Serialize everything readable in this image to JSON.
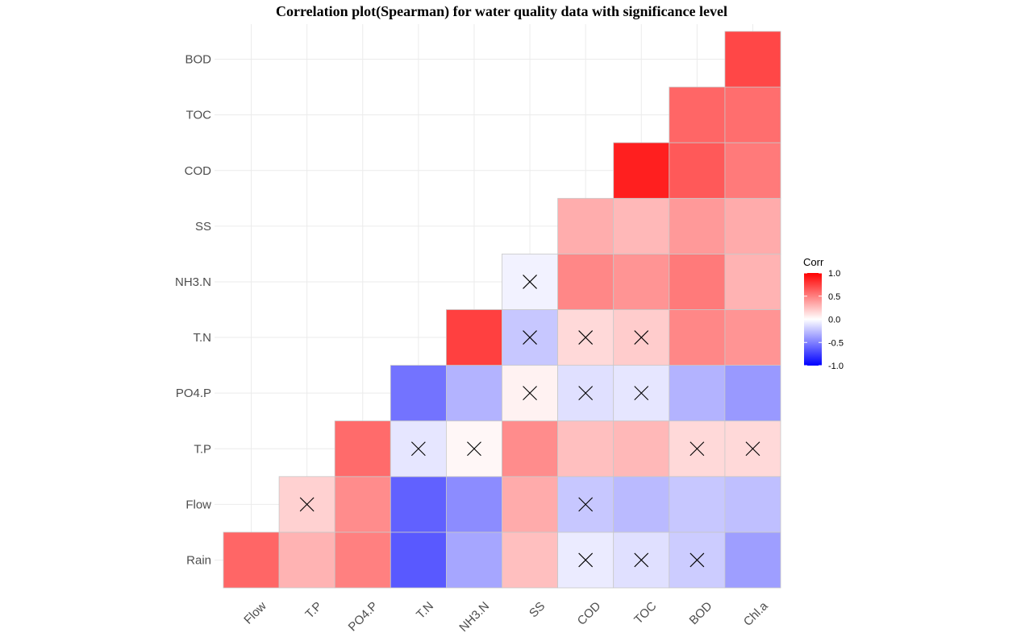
{
  "title": "Correlation plot(Spearman) for water quality data with significance level",
  "chart_data": {
    "type": "heatmap",
    "title": "Correlation plot(Spearman) for water quality data with significance level",
    "method": "Spearman",
    "x_labels": [
      "Flow",
      "T.P",
      "PO4.P",
      "T.N",
      "NH3.N",
      "SS",
      "COD",
      "TOC",
      "BOD",
      "Chl.a"
    ],
    "y_labels": [
      "Rain",
      "Flow",
      "T.P",
      "PO4.P",
      "T.N",
      "NH3.N",
      "SS",
      "COD",
      "TOC",
      "BOD"
    ],
    "cells": [
      {
        "x": "Flow",
        "y": "Rain",
        "r": 0.6,
        "insignificant": false
      },
      {
        "x": "T.P",
        "y": "Rain",
        "r": 0.3,
        "insignificant": false
      },
      {
        "x": "PO4.P",
        "y": "Rain",
        "r": 0.5,
        "insignificant": false
      },
      {
        "x": "T.N",
        "y": "Rain",
        "r": -0.65,
        "insignificant": false
      },
      {
        "x": "NH3.N",
        "y": "Rain",
        "r": -0.35,
        "insignificant": false
      },
      {
        "x": "SS",
        "y": "Rain",
        "r": 0.25,
        "insignificant": false
      },
      {
        "x": "COD",
        "y": "Rain",
        "r": -0.08,
        "insignificant": true
      },
      {
        "x": "TOC",
        "y": "Rain",
        "r": -0.12,
        "insignificant": true
      },
      {
        "x": "BOD",
        "y": "Rain",
        "r": -0.2,
        "insignificant": true
      },
      {
        "x": "Chl.a",
        "y": "Rain",
        "r": -0.38,
        "insignificant": false
      },
      {
        "x": "T.P",
        "y": "Flow",
        "r": 0.18,
        "insignificant": true
      },
      {
        "x": "PO4.P",
        "y": "Flow",
        "r": 0.45,
        "insignificant": false
      },
      {
        "x": "T.N",
        "y": "Flow",
        "r": -0.62,
        "insignificant": false
      },
      {
        "x": "NH3.N",
        "y": "Flow",
        "r": -0.45,
        "insignificant": false
      },
      {
        "x": "SS",
        "y": "Flow",
        "r": 0.33,
        "insignificant": false
      },
      {
        "x": "COD",
        "y": "Flow",
        "r": -0.22,
        "insignificant": true
      },
      {
        "x": "TOC",
        "y": "Flow",
        "r": -0.27,
        "insignificant": false
      },
      {
        "x": "BOD",
        "y": "Flow",
        "r": -0.22,
        "insignificant": false
      },
      {
        "x": "Chl.a",
        "y": "Flow",
        "r": -0.25,
        "insignificant": false
      },
      {
        "x": "PO4.P",
        "y": "T.P",
        "r": 0.58,
        "insignificant": false
      },
      {
        "x": "T.N",
        "y": "T.P",
        "r": -0.1,
        "insignificant": true
      },
      {
        "x": "NH3.N",
        "y": "T.P",
        "r": 0.03,
        "insignificant": true
      },
      {
        "x": "SS",
        "y": "T.P",
        "r": 0.45,
        "insignificant": false
      },
      {
        "x": "COD",
        "y": "T.P",
        "r": 0.25,
        "insignificant": false
      },
      {
        "x": "TOC",
        "y": "T.P",
        "r": 0.28,
        "insignificant": false
      },
      {
        "x": "BOD",
        "y": "T.P",
        "r": 0.15,
        "insignificant": true
      },
      {
        "x": "Chl.a",
        "y": "T.P",
        "r": 0.15,
        "insignificant": true
      },
      {
        "x": "T.N",
        "y": "PO4.P",
        "r": -0.55,
        "insignificant": false
      },
      {
        "x": "NH3.N",
        "y": "PO4.P",
        "r": -0.3,
        "insignificant": false
      },
      {
        "x": "SS",
        "y": "PO4.P",
        "r": 0.05,
        "insignificant": true
      },
      {
        "x": "COD",
        "y": "PO4.P",
        "r": -0.12,
        "insignificant": true
      },
      {
        "x": "TOC",
        "y": "PO4.P",
        "r": -0.1,
        "insignificant": true
      },
      {
        "x": "BOD",
        "y": "PO4.P",
        "r": -0.3,
        "insignificant": false
      },
      {
        "x": "Chl.a",
        "y": "PO4.P",
        "r": -0.4,
        "insignificant": false
      },
      {
        "x": "NH3.N",
        "y": "T.N",
        "r": 0.75,
        "insignificant": false
      },
      {
        "x": "SS",
        "y": "T.N",
        "r": -0.22,
        "insignificant": true
      },
      {
        "x": "COD",
        "y": "T.N",
        "r": 0.15,
        "insignificant": true
      },
      {
        "x": "TOC",
        "y": "T.N",
        "r": 0.2,
        "insignificant": true
      },
      {
        "x": "BOD",
        "y": "T.N",
        "r": 0.47,
        "insignificant": false
      },
      {
        "x": "Chl.a",
        "y": "T.N",
        "r": 0.42,
        "insignificant": false
      },
      {
        "x": "SS",
        "y": "NH3.N",
        "r": -0.05,
        "insignificant": true
      },
      {
        "x": "COD",
        "y": "NH3.N",
        "r": 0.47,
        "insignificant": false
      },
      {
        "x": "TOC",
        "y": "NH3.N",
        "r": 0.42,
        "insignificant": false
      },
      {
        "x": "BOD",
        "y": "NH3.N",
        "r": 0.52,
        "insignificant": false
      },
      {
        "x": "Chl.a",
        "y": "NH3.N",
        "r": 0.3,
        "insignificant": false
      },
      {
        "x": "COD",
        "y": "SS",
        "r": 0.32,
        "insignificant": false
      },
      {
        "x": "TOC",
        "y": "SS",
        "r": 0.28,
        "insignificant": false
      },
      {
        "x": "BOD",
        "y": "SS",
        "r": 0.4,
        "insignificant": false
      },
      {
        "x": "Chl.a",
        "y": "SS",
        "r": 0.33,
        "insignificant": false
      },
      {
        "x": "TOC",
        "y": "COD",
        "r": 0.88,
        "insignificant": false
      },
      {
        "x": "BOD",
        "y": "COD",
        "r": 0.65,
        "insignificant": false
      },
      {
        "x": "Chl.a",
        "y": "COD",
        "r": 0.52,
        "insignificant": false
      },
      {
        "x": "BOD",
        "y": "TOC",
        "r": 0.6,
        "insignificant": false
      },
      {
        "x": "Chl.a",
        "y": "TOC",
        "r": 0.57,
        "insignificant": false
      },
      {
        "x": "Chl.a",
        "y": "BOD",
        "r": 0.72,
        "insignificant": false
      }
    ],
    "legend": {
      "title": "Corr",
      "range": [
        -1.0,
        1.0
      ],
      "breaks": [
        1.0,
        0.5,
        0.0,
        -0.5,
        -1.0
      ],
      "break_labels": [
        "1.0",
        "0.5",
        "0.0",
        "-0.5",
        "-1.0"
      ],
      "placement": "right"
    },
    "colors": {
      "high": "#ff0000",
      "mid": "#ffffff",
      "low": "#0000ff",
      "tile_border": "#c8c8c8",
      "grid": "#ebebeb",
      "marker": "#000000"
    },
    "grid": true
  }
}
